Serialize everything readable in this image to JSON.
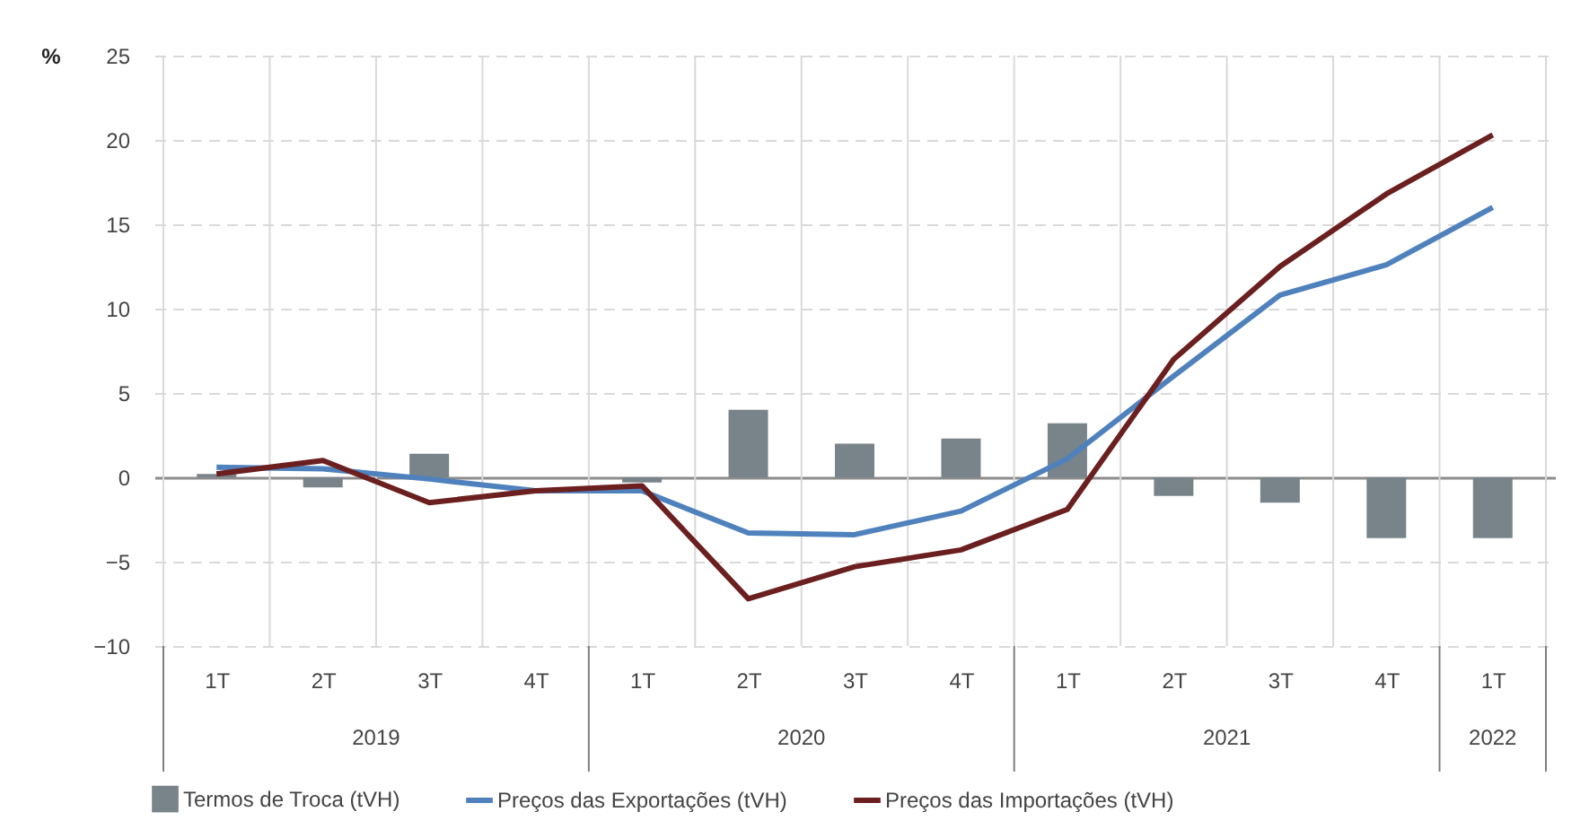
{
  "chart_data": {
    "type": "bar",
    "ylabel": "%",
    "categories": [
      "1T",
      "2T",
      "3T",
      "4T",
      "1T",
      "2T",
      "3T",
      "4T",
      "1T",
      "2T",
      "3T",
      "4T",
      "1T"
    ],
    "annotations": [
      "2019",
      "2020",
      "2021",
      "2022"
    ],
    "series": [
      {
        "name": "Termos de Troca (tVH)",
        "color": "#78848a",
        "values": [
          0.2,
          -0.6,
          1.4,
          0,
          -0.3,
          4.0,
          2.0,
          2.3,
          3.2,
          -1.1,
          -1.5,
          -3.6,
          -3.6
        ]
      },
      {
        "name": "Preços das Exportações (tVH)",
        "type": "line",
        "color": "#4f81bd",
        "values": [
          0.6,
          0.5,
          -0.1,
          -0.8,
          -0.8,
          -3.3,
          -3.4,
          -2.0,
          1.1,
          6.0,
          10.8,
          12.6,
          16.0
        ]
      },
      {
        "name": "Preços das Importações (tVH)",
        "type": "line",
        "color": "#6b1f1f",
        "values": [
          0.2,
          1.0,
          -1.5,
          -0.8,
          -0.5,
          -7.2,
          -5.3,
          -4.3,
          -1.9,
          7.0,
          12.5,
          16.8,
          20.3
        ]
      }
    ],
    "ylim": [
      -10,
      25
    ],
    "yticks": [
      -10,
      -5,
      0,
      5,
      10,
      15,
      20,
      25
    ],
    "grid": true,
    "legend": "bottom"
  }
}
